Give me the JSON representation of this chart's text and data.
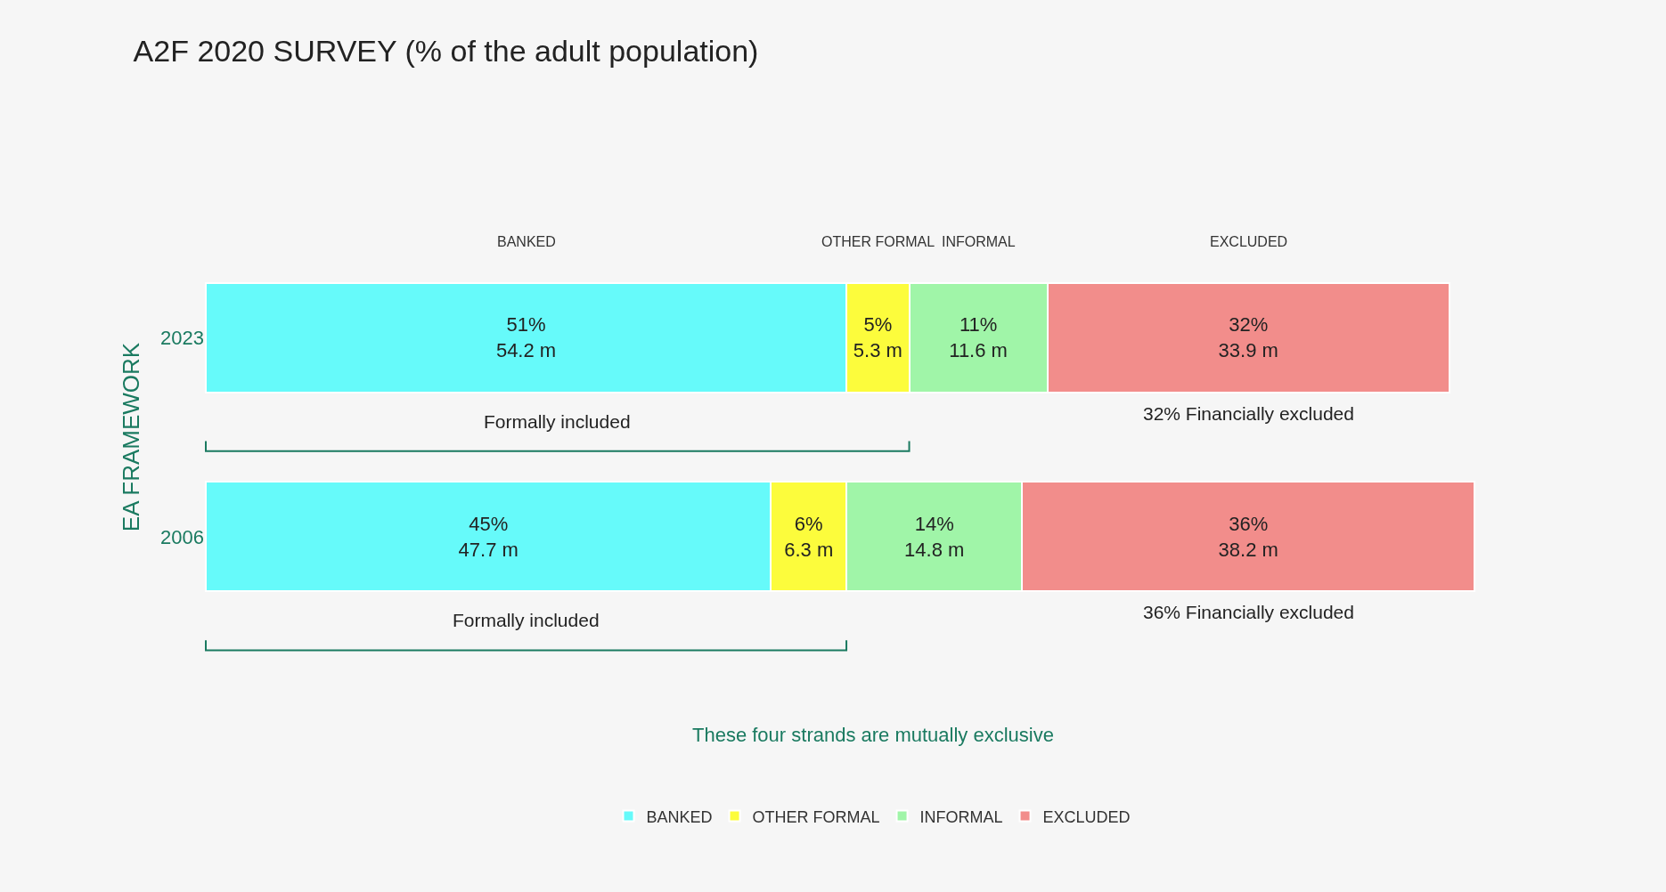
{
  "chart_data": {
    "type": "bar",
    "orientation": "horizontal",
    "stacked": true,
    "title": "A2F 2020 SURVEY (% of the adult population)",
    "ylabel": "EA FRAMEWORK",
    "categories": [
      "2023",
      "2006"
    ],
    "series": [
      {
        "name": "BANKED",
        "color": "#66fafa",
        "values": [
          51,
          45
        ],
        "value_labels": [
          "51%\n54.2 m",
          "45%\n47.7 m"
        ]
      },
      {
        "name": "OTHER FORMAL",
        "color": "#fcfc3c",
        "values": [
          5,
          6
        ],
        "value_labels": [
          "5%\n5.3 m",
          "6%\n6.3 m"
        ]
      },
      {
        "name": "INFORMAL",
        "color": "#a0f5a8",
        "values": [
          11,
          14
        ],
        "value_labels": [
          "11%\n11.6 m",
          "14%\n14.8 m"
        ]
      },
      {
        "name": "EXCLUDED",
        "color": "#f28d8b",
        "values": [
          32,
          36
        ],
        "value_labels": [
          "32%\n33.9 m",
          "36%\n38.2 m"
        ]
      }
    ],
    "annotations": [
      "Formally included",
      "Formally included",
      "32% Financially excluded",
      "36% Financially excluded",
      "These four strands are mutually exclusive"
    ],
    "legend": "bottom"
  }
}
